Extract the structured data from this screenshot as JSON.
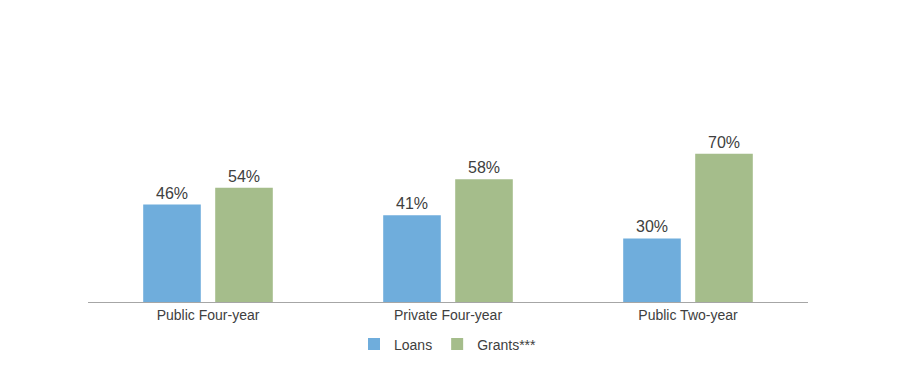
{
  "chart_data": {
    "type": "bar",
    "categories": [
      "Public Four-year",
      "Private Four-year",
      "Public Two-year"
    ],
    "series": [
      {
        "name": "Loans",
        "color": "#6FADDC",
        "values": [
          46,
          41,
          30
        ],
        "value_labels": [
          "46%",
          "41%",
          "30%"
        ]
      },
      {
        "name": "Grants***",
        "color": "#A5BD8B",
        "values": [
          54,
          58,
          70
        ],
        "value_labels": [
          "54%",
          "58%",
          "70%"
        ]
      }
    ],
    "data_labels": true,
    "tick_labels": "x",
    "grid": false,
    "legend": "bottom"
  }
}
